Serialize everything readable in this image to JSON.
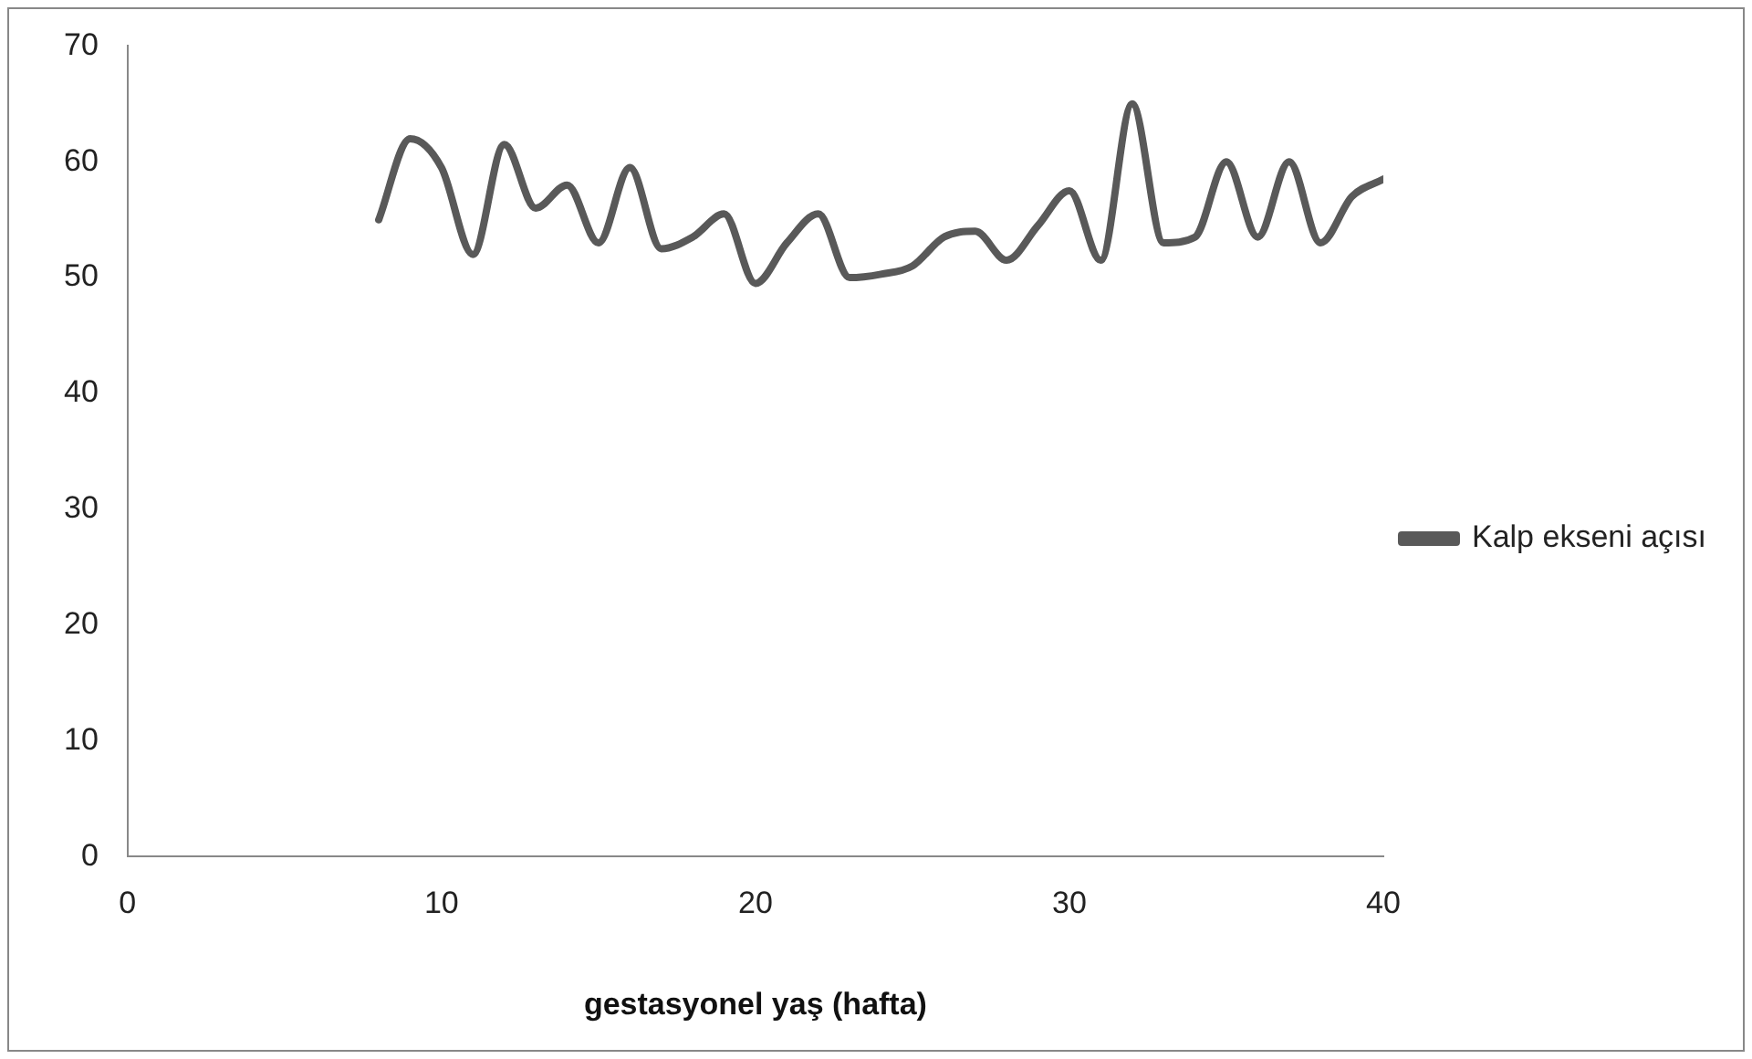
{
  "chart_data": {
    "type": "line",
    "xlabel": "gestasyonel yaş (hafta)",
    "x": [
      8,
      9,
      10,
      11,
      12,
      13,
      14,
      15,
      16,
      17,
      18,
      19,
      20,
      21,
      22,
      23,
      24,
      25,
      26,
      27,
      28,
      29,
      30,
      31,
      32,
      33,
      34,
      35,
      36,
      37,
      38,
      39,
      40
    ],
    "series": [
      {
        "name": "Kalp ekseni açısı",
        "color": "#595959",
        "values": [
          55,
          62,
          59.5,
          52,
          61.5,
          56,
          58,
          53,
          59.5,
          52.5,
          53.5,
          55.5,
          49.5,
          53,
          55.5,
          50,
          50.3,
          51,
          53.5,
          54,
          51.5,
          54.5,
          57.5,
          51.5,
          65,
          53,
          53.5,
          60,
          53.5,
          60,
          53,
          57,
          58.5
        ]
      }
    ],
    "xlim": [
      0,
      40
    ],
    "xticks": [
      0,
      10,
      20,
      30,
      40
    ],
    "ylim": [
      0,
      70
    ],
    "yticks": [
      0,
      10,
      20,
      30,
      40,
      50,
      60,
      70
    ],
    "grid": false,
    "legend": "right",
    "marker": "none",
    "line_style": "solid"
  }
}
